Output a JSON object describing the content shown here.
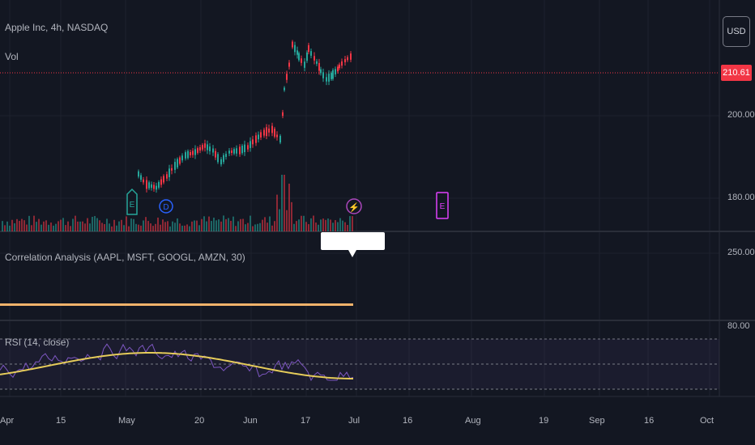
{
  "header": {
    "symbol_line": "Apple Inc, 4h, NASDAQ",
    "volume_label": "Vol",
    "currency_button": "USD"
  },
  "price_axis": {
    "last_price": "210.61",
    "ticks": [
      "200.00",
      "180.00"
    ]
  },
  "correlation_pane": {
    "title": "Correlation Analysis (AAPL, MSFT, GOOGL, AMZN, 30)",
    "axis_tick": "250.00"
  },
  "rsi_pane": {
    "title": "RSI (14, close)",
    "axis_tick": "80.00"
  },
  "time_axis": {
    "labels": [
      "Apr",
      "15",
      "May",
      "20",
      "Jun",
      "17",
      "Jul",
      "16",
      "Aug",
      "19",
      "Sep",
      "16",
      "Oct"
    ]
  },
  "event_markers": [
    {
      "icon": "earnings-icon",
      "letter": "E",
      "color": "#26a69a"
    },
    {
      "icon": "dividend-icon",
      "letter": "D",
      "color": "#2962ff"
    },
    {
      "icon": "split-flash-icon",
      "letter": "⚡",
      "color": "#ab47bc"
    },
    {
      "icon": "earnings-upcoming-icon",
      "letter": "E",
      "color": "#e040fb"
    }
  ],
  "colors": {
    "background": "#131722",
    "up_candle": "#26a69a",
    "down_candle": "#f23645",
    "rsi_line": "#7e57c2",
    "rsi_ma": "#e6cc5a",
    "correlation_line": "#f2b36b"
  }
}
